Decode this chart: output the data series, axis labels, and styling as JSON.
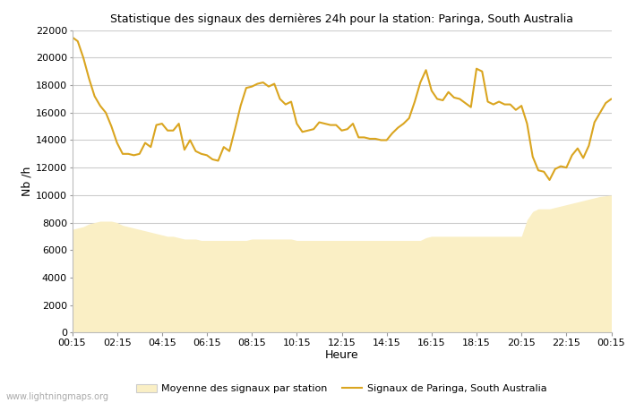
{
  "title": "Statistique des signaux des dernières 24h pour la station: Paringa, South Australia",
  "xlabel": "Heure",
  "ylabel": "Nb /h",
  "xlim": [
    0,
    96
  ],
  "ylim": [
    0,
    22000
  ],
  "yticks": [
    0,
    2000,
    4000,
    6000,
    8000,
    10000,
    12000,
    14000,
    16000,
    18000,
    20000,
    22000
  ],
  "xtick_labels": [
    "00:15",
    "02:15",
    "04:15",
    "06:15",
    "08:15",
    "10:15",
    "12:15",
    "14:15",
    "16:15",
    "18:15",
    "20:15",
    "22:15",
    "00:15"
  ],
  "xtick_positions": [
    0,
    8,
    16,
    24,
    32,
    40,
    48,
    56,
    64,
    72,
    80,
    88,
    96
  ],
  "background_color": "#ffffff",
  "plot_bg_color": "#ffffff",
  "grid_color": "#cccccc",
  "line_color": "#DAA520",
  "fill_color": "#FAEFC5",
  "watermark": "www.lightningmaps.org",
  "legend_label_fill": "Moyenne des signaux par station",
  "legend_label_line": "Signaux de Paringa, South Australia",
  "signal_x": [
    0,
    1,
    2,
    3,
    4,
    5,
    6,
    7,
    8,
    9,
    10,
    11,
    12,
    13,
    14,
    15,
    16,
    17,
    18,
    19,
    20,
    21,
    22,
    23,
    24,
    25,
    26,
    27,
    28,
    29,
    30,
    31,
    32,
    33,
    34,
    35,
    36,
    37,
    38,
    39,
    40,
    41,
    42,
    43,
    44,
    45,
    46,
    47,
    48,
    49,
    50,
    51,
    52,
    53,
    54,
    55,
    56,
    57,
    58,
    59,
    60,
    61,
    62,
    63,
    64,
    65,
    66,
    67,
    68,
    69,
    70,
    71,
    72,
    73,
    74,
    75,
    76,
    77,
    78,
    79,
    80,
    81,
    82,
    83,
    84,
    85,
    86,
    87,
    88,
    89,
    90,
    91,
    92,
    93,
    94,
    95,
    96
  ],
  "signal_y": [
    21500,
    21200,
    20000,
    18500,
    17200,
    16500,
    16000,
    15000,
    13800,
    13000,
    13000,
    12900,
    13000,
    13800,
    13500,
    15100,
    15200,
    14700,
    14700,
    15200,
    13300,
    14000,
    13200,
    13000,
    12900,
    12600,
    12500,
    13500,
    13200,
    14800,
    16500,
    17800,
    17900,
    18100,
    18200,
    17900,
    18100,
    17000,
    16600,
    16800,
    15200,
    14600,
    14700,
    14800,
    15300,
    15200,
    15100,
    15100,
    14700,
    14800,
    15200,
    14200,
    14200,
    14100,
    14100,
    14000,
    14000,
    14500,
    14900,
    15200,
    15600,
    16800,
    18200,
    19100,
    17600,
    17000,
    16900,
    17500,
    17100,
    17000,
    16700,
    16400,
    19200,
    19000,
    16800,
    16600,
    16800,
    16600,
    16600,
    16200,
    16500,
    15200,
    12800,
    11800,
    11700,
    11100,
    11900,
    12100,
    12000,
    12900,
    13400,
    12700,
    13600,
    15300,
    16000,
    16700,
    17000
  ],
  "avg_x": [
    0,
    1,
    2,
    3,
    4,
    5,
    6,
    7,
    8,
    9,
    10,
    11,
    12,
    13,
    14,
    15,
    16,
    17,
    18,
    19,
    20,
    21,
    22,
    23,
    24,
    25,
    26,
    27,
    28,
    29,
    30,
    31,
    32,
    33,
    34,
    35,
    36,
    37,
    38,
    39,
    40,
    41,
    42,
    43,
    44,
    45,
    46,
    47,
    48,
    49,
    50,
    51,
    52,
    53,
    54,
    55,
    56,
    57,
    58,
    59,
    60,
    61,
    62,
    63,
    64,
    65,
    66,
    67,
    68,
    69,
    70,
    71,
    72,
    73,
    74,
    75,
    76,
    77,
    78,
    79,
    80,
    81,
    82,
    83,
    84,
    85,
    86,
    87,
    88,
    89,
    90,
    91,
    92,
    93,
    94,
    95,
    96
  ],
  "avg_y": [
    7500,
    7600,
    7700,
    7900,
    8000,
    8100,
    8100,
    8100,
    8000,
    7800,
    7700,
    7600,
    7500,
    7400,
    7300,
    7200,
    7100,
    7000,
    7000,
    6900,
    6800,
    6800,
    6800,
    6700,
    6700,
    6700,
    6700,
    6700,
    6700,
    6700,
    6700,
    6700,
    6800,
    6800,
    6800,
    6800,
    6800,
    6800,
    6800,
    6800,
    6700,
    6700,
    6700,
    6700,
    6700,
    6700,
    6700,
    6700,
    6700,
    6700,
    6700,
    6700,
    6700,
    6700,
    6700,
    6700,
    6700,
    6700,
    6700,
    6700,
    6700,
    6700,
    6700,
    6900,
    7000,
    7000,
    7000,
    7000,
    7000,
    7000,
    7000,
    7000,
    7000,
    7000,
    7000,
    7000,
    7000,
    7000,
    7000,
    7000,
    7000,
    8200,
    8800,
    9000,
    9000,
    9000,
    9100,
    9200,
    9300,
    9400,
    9500,
    9600,
    9700,
    9800,
    9900,
    9950,
    10000
  ]
}
